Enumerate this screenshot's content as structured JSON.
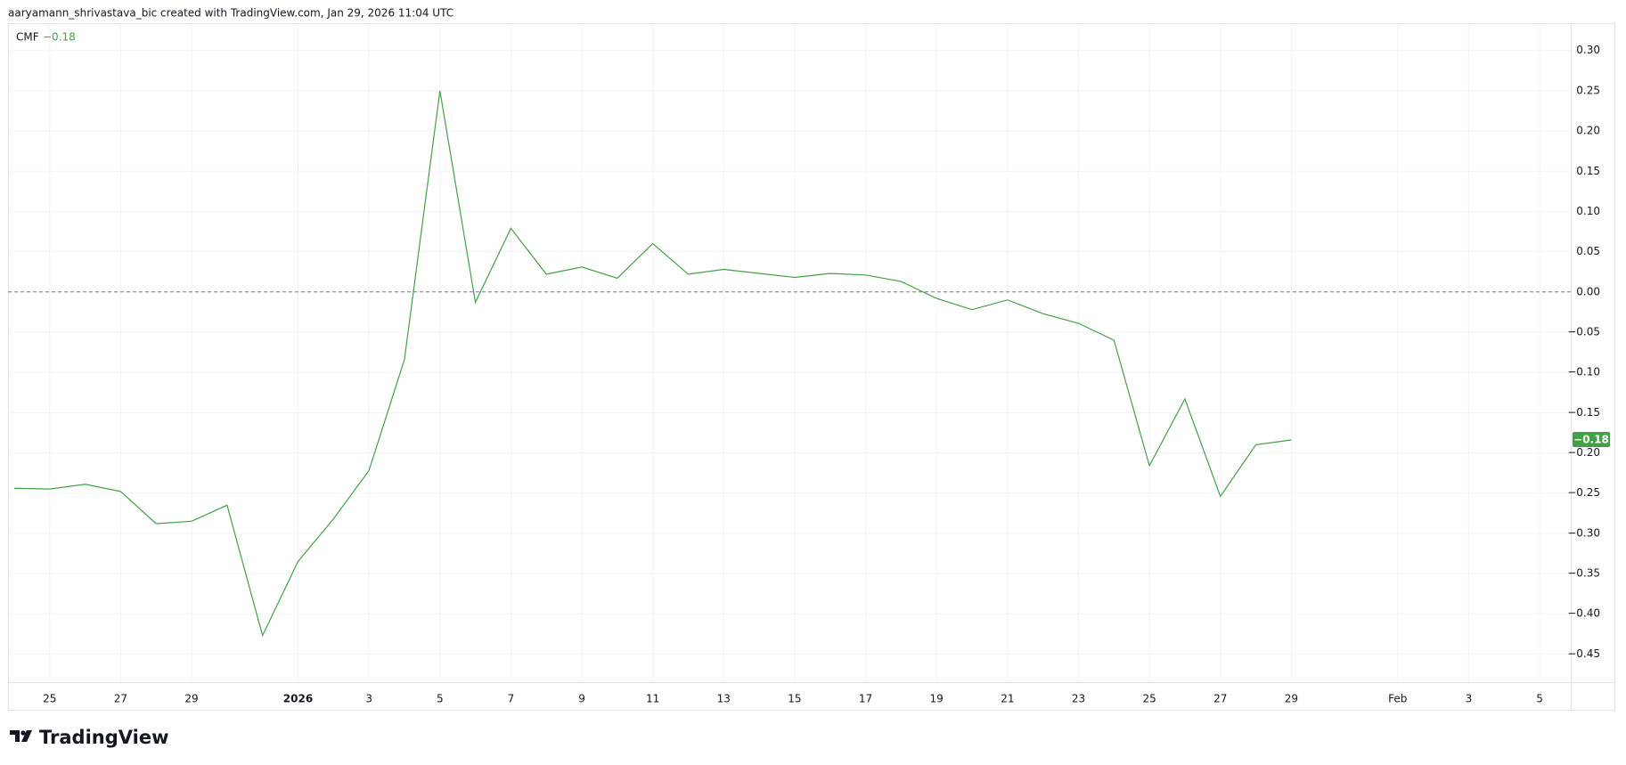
{
  "header": {
    "attribution": "aaryamann_shrivastava_bic created with TradingView.com, Jan 29, 2026 11:04 UTC"
  },
  "footer_brand": "TradingView",
  "chart_data": {
    "type": "line",
    "indicator": "CMF",
    "last_value_label": "−0.18",
    "x": [
      "2025-12-24",
      "2025-12-25",
      "2025-12-26",
      "2025-12-27",
      "2025-12-28",
      "2025-12-29",
      "2025-12-30",
      "2025-12-31",
      "2026-01-01",
      "2026-01-02",
      "2026-01-03",
      "2026-01-04",
      "2026-01-05",
      "2026-01-06",
      "2026-01-07",
      "2026-01-08",
      "2026-01-09",
      "2026-01-10",
      "2026-01-11",
      "2026-01-12",
      "2026-01-13",
      "2026-01-14",
      "2026-01-15",
      "2026-01-16",
      "2026-01-17",
      "2026-01-18",
      "2026-01-19",
      "2026-01-20",
      "2026-01-21",
      "2026-01-22",
      "2026-01-23",
      "2026-01-24",
      "2026-01-25",
      "2026-01-26",
      "2026-01-27",
      "2026-01-28",
      "2026-01-29"
    ],
    "series": [
      {
        "name": "CMF",
        "color": "#43a047",
        "values": [
          -0.244,
          -0.245,
          -0.239,
          -0.248,
          -0.288,
          -0.285,
          -0.265,
          -0.427,
          -0.335,
          -0.282,
          -0.222,
          -0.084,
          0.25,
          -0.013,
          0.079,
          0.022,
          0.031,
          0.017,
          0.06,
          0.022,
          0.028,
          0.023,
          0.018,
          0.023,
          0.021,
          0.013,
          -0.008,
          -0.022,
          -0.01,
          -0.027,
          -0.039,
          -0.06,
          -0.216,
          -0.133,
          -0.254,
          -0.19,
          -0.184
        ]
      }
    ],
    "xlim": [
      "2025-12-23T19:48Z",
      "2026-02-05T21:03Z"
    ],
    "xticks": [
      {
        "value": "2025-12-25",
        "label": "25"
      },
      {
        "value": "2025-12-27",
        "label": "27"
      },
      {
        "value": "2025-12-29",
        "label": "29"
      },
      {
        "value": "2026-01-01",
        "label": "2026"
      },
      {
        "value": "2026-01-03",
        "label": "3"
      },
      {
        "value": "2026-01-05",
        "label": "5"
      },
      {
        "value": "2026-01-07",
        "label": "7"
      },
      {
        "value": "2026-01-09",
        "label": "9"
      },
      {
        "value": "2026-01-11",
        "label": "11"
      },
      {
        "value": "2026-01-13",
        "label": "13"
      },
      {
        "value": "2026-01-15",
        "label": "15"
      },
      {
        "value": "2026-01-17",
        "label": "17"
      },
      {
        "value": "2026-01-19",
        "label": "19"
      },
      {
        "value": "2026-01-21",
        "label": "21"
      },
      {
        "value": "2026-01-23",
        "label": "23"
      },
      {
        "value": "2026-01-25",
        "label": "25"
      },
      {
        "value": "2026-01-27",
        "label": "27"
      },
      {
        "value": "2026-01-29",
        "label": "29"
      },
      {
        "value": "2026-02-01",
        "label": "Feb"
      },
      {
        "value": "2026-02-03",
        "label": "3"
      },
      {
        "value": "2026-02-05",
        "label": "5"
      }
    ],
    "ylim": [
      -0.485,
      0.334
    ],
    "yticks": [
      {
        "value": 0.3,
        "label": "0.30"
      },
      0.25,
      {
        "value": 0.2,
        "label": "0.20"
      },
      0.15,
      {
        "value": 0.1,
        "label": "0.10"
      },
      0.05,
      {
        "value": 0,
        "label": "0.00"
      },
      {
        "value": -0.05,
        "label": "−0.05"
      },
      {
        "value": -0.1,
        "label": "−0.10"
      },
      {
        "value": -0.15,
        "label": "−0.15"
      },
      {
        "value": -0.2,
        "label": "−0.20"
      },
      {
        "value": -0.25,
        "label": "−0.25"
      },
      {
        "value": -0.3,
        "label": "−0.30"
      },
      {
        "value": -0.35,
        "label": "−0.35"
      },
      {
        "value": -0.4,
        "label": "−0.40"
      },
      {
        "value": -0.45,
        "label": "−0.45"
      }
    ],
    "hline": 0,
    "grid": true
  }
}
